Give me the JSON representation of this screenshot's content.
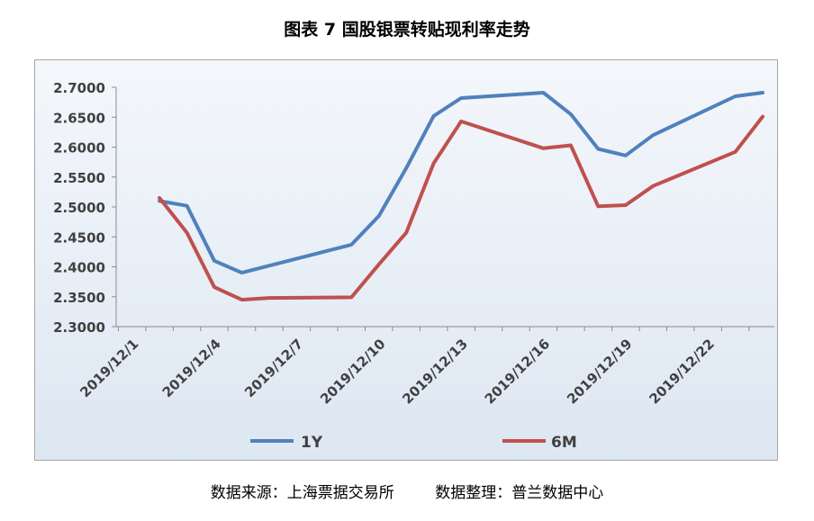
{
  "title": "图表 7  国股银票转贴现利率走势",
  "footer": {
    "source": "数据来源：上海票据交易所",
    "compiled": "数据整理：普兰数据中心"
  },
  "chart_data": {
    "type": "line",
    "title": "图表 7  国股银票转贴现利率走势",
    "xlabel": "",
    "ylabel": "",
    "ylim": [
      2.3,
      2.7
    ],
    "y_ticks": [
      "2.3000",
      "2.3500",
      "2.4000",
      "2.4500",
      "2.5000",
      "2.5500",
      "2.6000",
      "2.6500",
      "2.7000"
    ],
    "x_tick_labels": [
      "2019/12/1",
      "2019/12/4",
      "2019/12/7",
      "2019/12/10",
      "2019/12/13",
      "2019/12/16",
      "2019/12/19",
      "2019/12/22"
    ],
    "x_tick_days": [
      1,
      4,
      7,
      10,
      13,
      16,
      19,
      22
    ],
    "xlim_days": [
      1,
      24.5
    ],
    "grid": false,
    "legend_position": "bottom",
    "series": [
      {
        "name": "1Y",
        "color": "#4f81bd",
        "points": [
          {
            "x": "2019/12/2",
            "y": 2.51
          },
          {
            "x": "2019/12/3",
            "y": 2.502
          },
          {
            "x": "2019/12/4",
            "y": 2.41
          },
          {
            "x": "2019/12/5",
            "y": 2.39
          },
          {
            "x": "2019/12/9",
            "y": 2.437
          },
          {
            "x": "2019/12/10",
            "y": 2.485
          },
          {
            "x": "2019/12/11",
            "y": 2.565
          },
          {
            "x": "2019/12/12",
            "y": 2.652
          },
          {
            "x": "2019/12/13",
            "y": 2.682
          },
          {
            "x": "2019/12/16",
            "y": 2.691
          },
          {
            "x": "2019/12/17",
            "y": 2.655
          },
          {
            "x": "2019/12/18",
            "y": 2.597
          },
          {
            "x": "2019/12/19",
            "y": 2.586
          },
          {
            "x": "2019/12/20",
            "y": 2.62
          },
          {
            "x": "2019/12/23",
            "y": 2.685
          },
          {
            "x": "2019/12/24",
            "y": 2.691
          }
        ]
      },
      {
        "name": "6M",
        "color": "#c0504d",
        "points": [
          {
            "x": "2019/12/2",
            "y": 2.515
          },
          {
            "x": "2019/12/3",
            "y": 2.457
          },
          {
            "x": "2019/12/4",
            "y": 2.366
          },
          {
            "x": "2019/12/5",
            "y": 2.345
          },
          {
            "x": "2019/12/6",
            "y": 2.348
          },
          {
            "x": "2019/12/9",
            "y": 2.349
          },
          {
            "x": "2019/12/10",
            "y": 2.404
          },
          {
            "x": "2019/12/11",
            "y": 2.457
          },
          {
            "x": "2019/12/12",
            "y": 2.573
          },
          {
            "x": "2019/12/13",
            "y": 2.643
          },
          {
            "x": "2019/12/16",
            "y": 2.598
          },
          {
            "x": "2019/12/17",
            "y": 2.603
          },
          {
            "x": "2019/12/18",
            "y": 2.501
          },
          {
            "x": "2019/12/19",
            "y": 2.503
          },
          {
            "x": "2019/12/20",
            "y": 2.535
          },
          {
            "x": "2019/12/23",
            "y": 2.592
          },
          {
            "x": "2019/12/24",
            "y": 2.651
          }
        ]
      }
    ]
  }
}
